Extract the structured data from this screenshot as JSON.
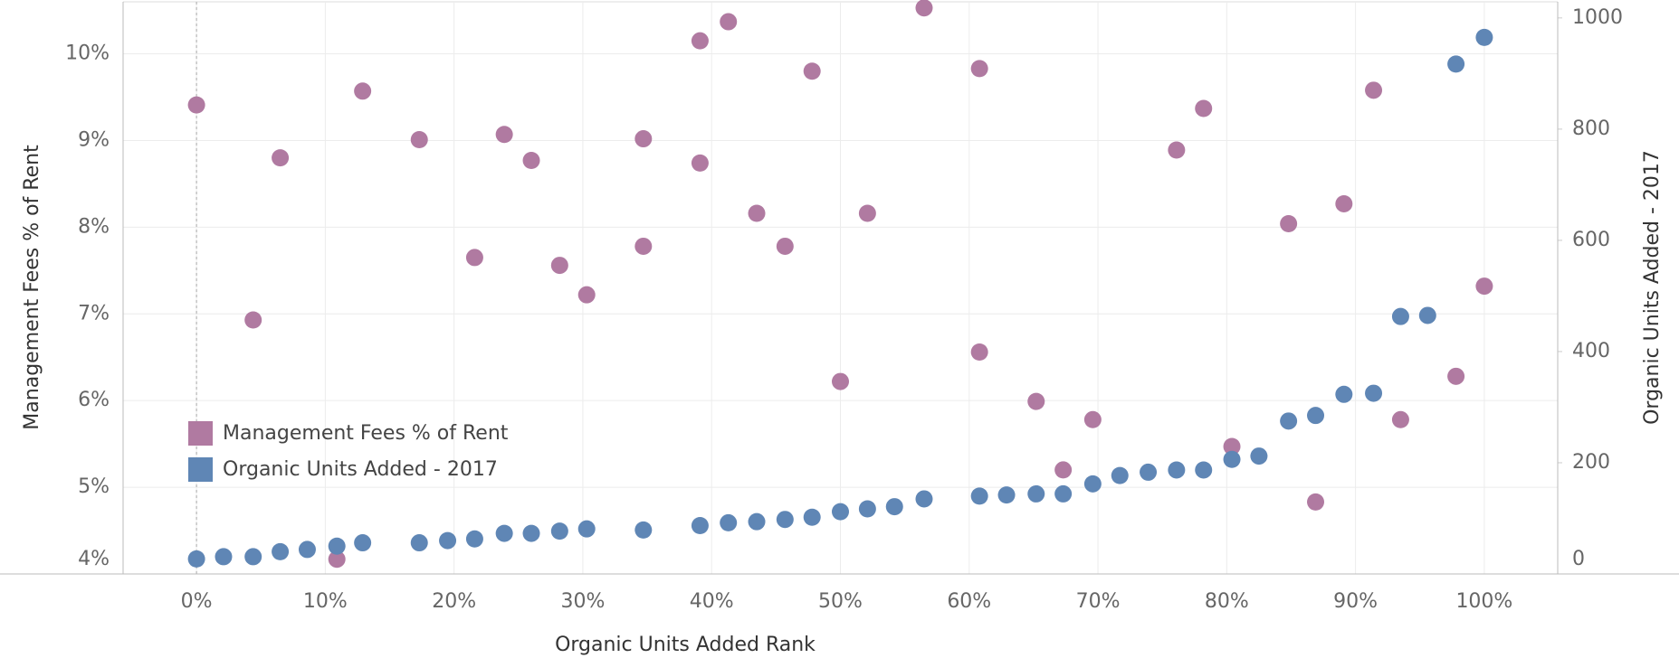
{
  "chart_data": {
    "type": "scatter",
    "x_label": "Organic Units Added Rank",
    "y_label": "Management Fees % of Rent",
    "y2_label": "Organic Units Added - 2017",
    "xlim": [
      -5.7,
      105.7
    ],
    "xticks": [
      {
        "value": 0,
        "label": "0%"
      },
      {
        "value": 10,
        "label": "10%"
      },
      {
        "value": 20,
        "label": "20%"
      },
      {
        "value": 30,
        "label": "30%"
      },
      {
        "value": 40,
        "label": "40%"
      },
      {
        "value": 50,
        "label": "50%"
      },
      {
        "value": 60,
        "label": "60%"
      },
      {
        "value": 70,
        "label": "70%"
      },
      {
        "value": 80,
        "label": "80%"
      },
      {
        "value": 90,
        "label": "90%"
      },
      {
        "value": 100,
        "label": "100%"
      }
    ],
    "ylim": [
      4,
      10.6
    ],
    "yticks": [
      {
        "value": 4,
        "label": "4%"
      },
      {
        "value": 5,
        "label": "5%"
      },
      {
        "value": 6,
        "label": "6%"
      },
      {
        "value": 7,
        "label": "7%"
      },
      {
        "value": 8,
        "label": "8%"
      },
      {
        "value": 9,
        "label": "9%"
      },
      {
        "value": 10,
        "label": "10%"
      }
    ],
    "y2lim": [
      0,
      1029
    ],
    "y2ticks": [
      0,
      200,
      400,
      600,
      800,
      1000
    ],
    "grid": true,
    "legend": "lower left",
    "series": [
      {
        "name": "Management Fees % of Rent",
        "color": "#b07aa1",
        "x": [
          0,
          4.4,
          6.5,
          10.9,
          12.9,
          17.3,
          21.6,
          23.9,
          26.0,
          28.2,
          30.3,
          34.7,
          34.7,
          39.1,
          39.1,
          41.3,
          43.5,
          45.7,
          47.8,
          50.0,
          52.1,
          56.5,
          60.8,
          60.8,
          65.2,
          67.3,
          69.6,
          76.1,
          78.2,
          80.4,
          84.8,
          86.9,
          89.1,
          91.4,
          93.5,
          97.8,
          100
        ],
        "values": [
          9.41,
          6.93,
          8.8,
          4.17,
          9.57,
          9.01,
          7.65,
          9.07,
          8.77,
          7.56,
          7.22,
          9.02,
          7.78,
          10.15,
          8.74,
          10.37,
          8.16,
          7.78,
          9.8,
          6.22,
          8.16,
          10.53,
          9.83,
          6.56,
          5.99,
          5.2,
          5.78,
          8.89,
          9.37,
          5.47,
          8.04,
          4.83,
          8.27,
          9.58,
          5.78,
          6.28,
          7.32
        ]
      },
      {
        "name": "Organic Units Added - 2017",
        "color": "#5f86b5",
        "axis": "y2",
        "x": [
          0,
          2.1,
          4.4,
          6.5,
          8.6,
          10.9,
          12.9,
          17.3,
          19.5,
          21.6,
          23.9,
          26.0,
          28.2,
          30.3,
          34.7,
          39.1,
          41.3,
          43.5,
          45.7,
          47.8,
          50.0,
          52.1,
          54.2,
          56.5,
          60.8,
          62.9,
          65.2,
          67.3,
          69.6,
          71.7,
          73.9,
          76.1,
          78.2,
          80.4,
          82.5,
          84.8,
          86.9,
          89.1,
          91.4,
          93.5,
          95.6,
          97.8,
          100
        ],
        "values": [
          27,
          31,
          31,
          40,
          44,
          50,
          56,
          56,
          60,
          63,
          73,
          73,
          77,
          81,
          79,
          87,
          92,
          94,
          98,
          102,
          112,
          117,
          121,
          135,
          140,
          142,
          144,
          144,
          162,
          177,
          183,
          187,
          187,
          206,
          212,
          275,
          285,
          323,
          325,
          463,
          465,
          917,
          965
        ]
      }
    ]
  }
}
